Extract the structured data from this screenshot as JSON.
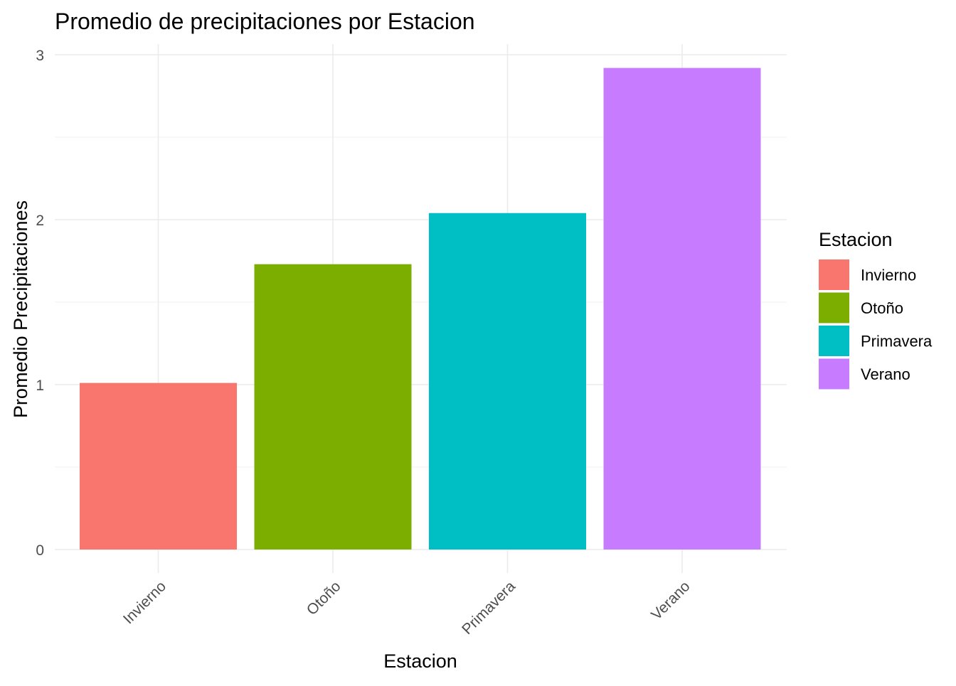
{
  "chart_data": {
    "type": "bar",
    "title": "Promedio de precipitaciones por Estacion",
    "xlabel": "Estacion",
    "ylabel": "Promedio Precipitaciones",
    "categories": [
      "Invierno",
      "Otoño",
      "Primavera",
      "Verano"
    ],
    "values": [
      1.01,
      1.73,
      2.04,
      2.92
    ],
    "colors": [
      "#F8766D",
      "#7CAE00",
      "#00BFC4",
      "#C77CFF"
    ],
    "ylim": [
      0,
      3
    ],
    "yticks": [
      0,
      1,
      2,
      3
    ],
    "grid": true,
    "legend": {
      "title": "Estacion",
      "position": "right",
      "entries": [
        "Invierno",
        "Otoño",
        "Primavera",
        "Verano"
      ]
    }
  }
}
